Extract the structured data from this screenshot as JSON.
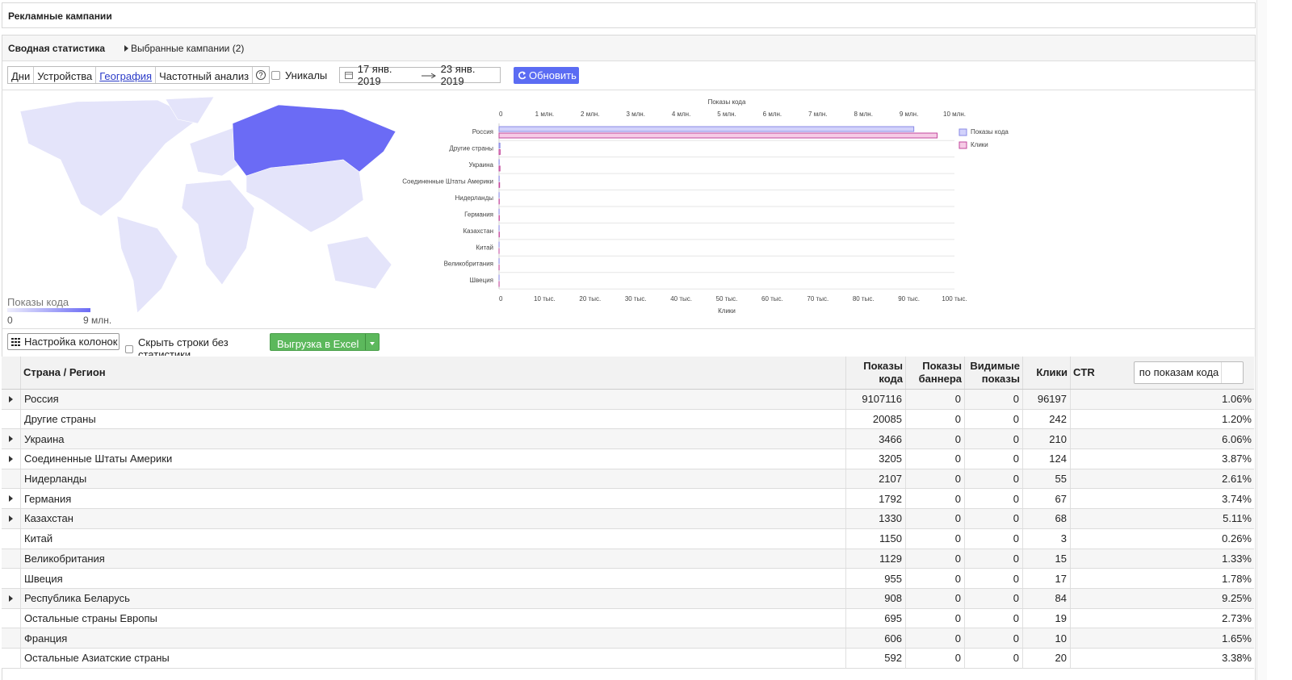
{
  "header": {
    "title": "Рекламные кампании"
  },
  "tabs": {
    "active": "Сводная статистика",
    "selected_campaigns": "Выбранные кампании (2)"
  },
  "toolbar": {
    "segments": [
      "Дни",
      "Устройства",
      "География",
      "Частотный анализ"
    ],
    "active_segment": 2,
    "help": "?",
    "unique_checkbox": "Уникалы",
    "date_from": "17 янв. 2019",
    "date_to": "23 янв. 2019",
    "refresh": "Обновить"
  },
  "map": {
    "legend_title": "Показы кода",
    "legend_min": "0",
    "legend_max": "9 млн."
  },
  "chart_data": {
    "type": "bar",
    "orientation": "horizontal",
    "categories": [
      "Россия",
      "Другие страны",
      "Украина",
      "Соединенные Штаты Америки",
      "Нидерланды",
      "Германия",
      "Казахстан",
      "Китай",
      "Великобритания",
      "Швеция"
    ],
    "series": [
      {
        "name": "Показы кода",
        "color": "#d2d2fb",
        "edgecolor": "#8a8ae6",
        "values": [
          9107116,
          20085,
          3466,
          3205,
          2107,
          1792,
          1330,
          1150,
          1129,
          955
        ]
      },
      {
        "name": "Клики",
        "color": "#f6cbe6",
        "edgecolor": "#c2479c",
        "axis": "x2",
        "values": [
          96197,
          242,
          210,
          124,
          55,
          67,
          68,
          3,
          15,
          17
        ]
      }
    ],
    "xlabel": "Показы кода",
    "xlim": [
      0,
      10000000
    ],
    "xticks": [
      0,
      {
        "value": 1000000,
        "label": "1 млн."
      },
      {
        "value": 2000000,
        "label": "2 млн."
      },
      {
        "value": 3000000,
        "label": "3 млн."
      },
      {
        "value": 4000000,
        "label": "4 млн."
      },
      {
        "value": 5000000,
        "label": "5 млн."
      },
      {
        "value": 6000000,
        "label": "6 млн."
      },
      {
        "value": 7000000,
        "label": "7 млн."
      },
      {
        "value": 8000000,
        "label": "8 млн."
      },
      {
        "value": 9000000,
        "label": "9 млн."
      },
      {
        "value": 10000000,
        "label": "10 млн."
      }
    ],
    "x2label": "Клики",
    "x2lim": [
      0,
      100000
    ],
    "x2ticks": [
      0,
      {
        "value": 10000,
        "label": "10 тыс."
      },
      {
        "value": 20000,
        "label": "20 тыс."
      },
      {
        "value": 30000,
        "label": "30 тыс."
      },
      {
        "value": 40000,
        "label": "40 тыс."
      },
      {
        "value": 50000,
        "label": "50 тыс."
      },
      {
        "value": 60000,
        "label": "60 тыс."
      },
      {
        "value": 70000,
        "label": "70 тыс."
      },
      {
        "value": 80000,
        "label": "80 тыс."
      },
      {
        "value": 90000,
        "label": "90 тыс."
      },
      {
        "value": 100000,
        "label": "100 тыс."
      }
    ],
    "legend": "right"
  },
  "controls": {
    "columns_button": "Настройка колонок",
    "hide_empty": "Скрыть строки без статистики",
    "export": "Выгрузка в Excel",
    "sort_select": "по показам кода"
  },
  "table": {
    "columns": [
      "Страна / Регион",
      "Показы кода",
      "Показы баннера",
      "Видимые показы",
      "Клики",
      "CTR"
    ],
    "rows": [
      {
        "expandable": true,
        "cells": [
          "Россия",
          9107116,
          0,
          0,
          96197,
          "1.06%"
        ]
      },
      {
        "expandable": false,
        "cells": [
          "Другие страны",
          20085,
          0,
          0,
          242,
          "1.20%"
        ]
      },
      {
        "expandable": true,
        "cells": [
          "Украина",
          3466,
          0,
          0,
          210,
          "6.06%"
        ]
      },
      {
        "expandable": true,
        "cells": [
          "Соединенные Штаты Америки",
          3205,
          0,
          0,
          124,
          "3.87%"
        ]
      },
      {
        "expandable": false,
        "cells": [
          "Нидерланды",
          2107,
          0,
          0,
          55,
          "2.61%"
        ]
      },
      {
        "expandable": true,
        "cells": [
          "Германия",
          1792,
          0,
          0,
          67,
          "3.74%"
        ]
      },
      {
        "expandable": true,
        "cells": [
          "Казахстан",
          1330,
          0,
          0,
          68,
          "5.11%"
        ]
      },
      {
        "expandable": false,
        "cells": [
          "Китай",
          1150,
          0,
          0,
          3,
          "0.26%"
        ]
      },
      {
        "expandable": false,
        "cells": [
          "Великобритания",
          1129,
          0,
          0,
          15,
          "1.33%"
        ]
      },
      {
        "expandable": false,
        "cells": [
          "Швеция",
          955,
          0,
          0,
          17,
          "1.78%"
        ]
      },
      {
        "expandable": true,
        "cells": [
          "Республика Беларусь",
          908,
          0,
          0,
          84,
          "9.25%"
        ]
      },
      {
        "expandable": false,
        "cells": [
          "Остальные страны Европы",
          695,
          0,
          0,
          19,
          "2.73%"
        ]
      },
      {
        "expandable": false,
        "cells": [
          "Франция",
          606,
          0,
          0,
          10,
          "1.65%"
        ]
      },
      {
        "expandable": false,
        "cells": [
          "Остальные Азиатские страны",
          592,
          0,
          0,
          20,
          "3.38%"
        ]
      }
    ]
  }
}
